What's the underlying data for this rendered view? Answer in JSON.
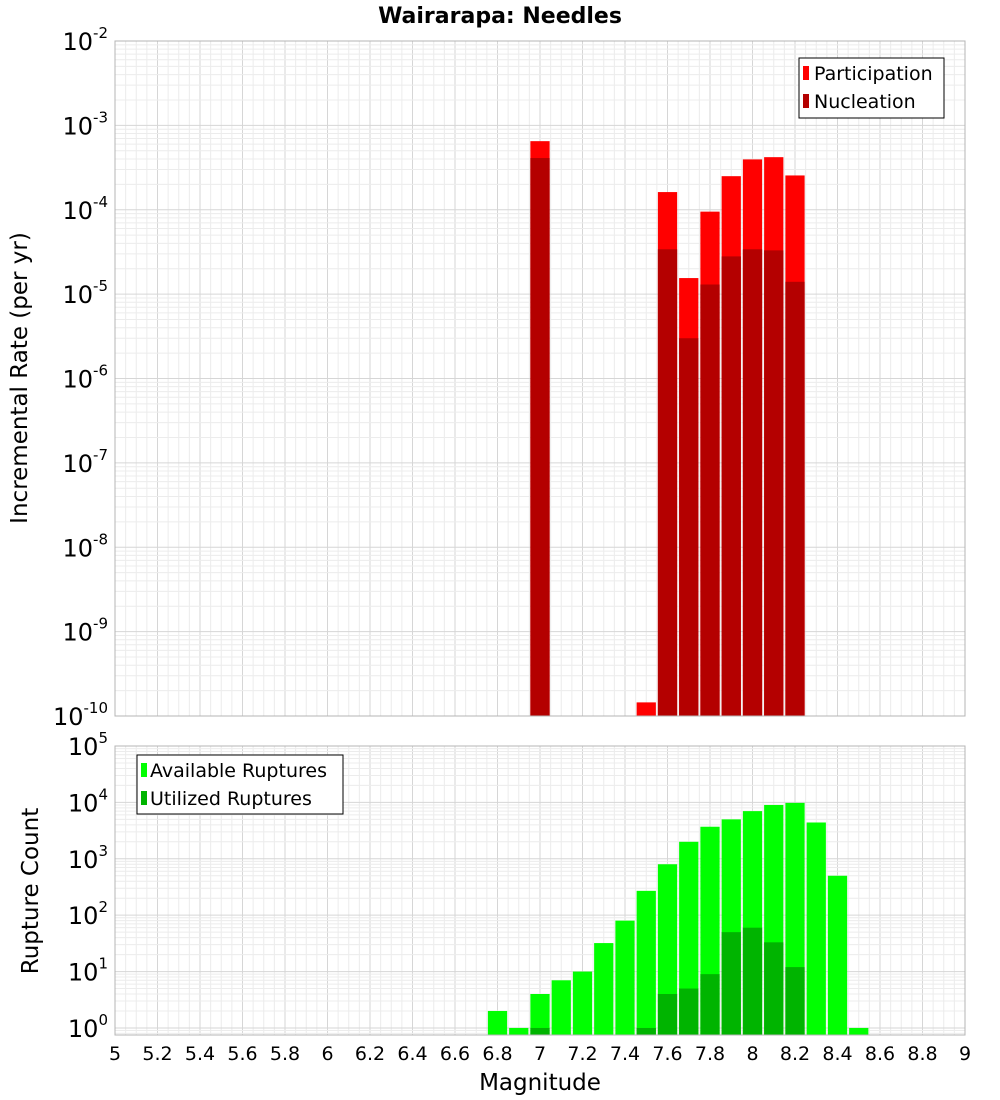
{
  "title": "Wairarapa: Needles",
  "chart_data": [
    {
      "type": "bar",
      "panel": "top",
      "ylabel": "Incremental Rate (per yr)",
      "yscale": "log",
      "ylim": [
        1e-10,
        0.01
      ],
      "y_tick_exponents": [
        "-2",
        "-3",
        "-4",
        "-5",
        "-6",
        "-7",
        "-8",
        "-9",
        "-10"
      ],
      "x": [
        7.0,
        7.5,
        7.6,
        7.7,
        7.8,
        7.9,
        8.0,
        8.1,
        8.2
      ],
      "series": [
        {
          "name": "Participation",
          "color": "#ff0000",
          "values": [
            0.00065,
            1.45e-10,
            0.000162,
            1.55e-05,
            9.5e-05,
            0.00025,
            0.000395,
            0.00042,
            0.000255
          ]
        },
        {
          "name": "Nucleation",
          "color": "#b40000",
          "values": [
            0.00041,
            null,
            3.4e-05,
            3e-06,
            1.3e-05,
            2.8e-05,
            3.4e-05,
            3.3e-05,
            1.4e-05
          ]
        }
      ],
      "legend": {
        "position": "top-right",
        "entries": [
          "Participation",
          "Nucleation"
        ]
      }
    },
    {
      "type": "bar",
      "panel": "bottom",
      "ylabel": "Rupture Count",
      "xlabel": "Magnitude",
      "yscale": "log",
      "ylim": [
        0.75,
        100000
      ],
      "y_tick_exponents": [
        "5",
        "4",
        "3",
        "2",
        "1",
        "0"
      ],
      "xlim": [
        5,
        9
      ],
      "x_tick_labels": [
        "5",
        "5.2",
        "5.4",
        "5.6",
        "5.8",
        "6",
        "6.2",
        "6.4",
        "6.6",
        "6.8",
        "7",
        "7.2",
        "7.4",
        "7.6",
        "7.8",
        "8",
        "8.2",
        "8.4",
        "8.6",
        "8.8",
        "9"
      ],
      "x": [
        6.8,
        6.9,
        7.0,
        7.1,
        7.2,
        7.3,
        7.4,
        7.5,
        7.6,
        7.7,
        7.8,
        7.9,
        8.0,
        8.1,
        8.2,
        8.3,
        8.4,
        8.5
      ],
      "series": [
        {
          "name": "Available Ruptures",
          "color": "#00ff00",
          "values": [
            2,
            1,
            4,
            7,
            10,
            32,
            80,
            270,
            800,
            2000,
            3700,
            5000,
            7000,
            9000,
            9800,
            4400,
            500,
            1
          ]
        },
        {
          "name": "Utilized Ruptures",
          "color": "#00b400",
          "values": [
            null,
            null,
            1,
            null,
            null,
            null,
            null,
            1,
            4,
            5,
            9,
            50,
            60,
            33,
            12,
            null,
            null,
            null
          ]
        }
      ],
      "legend": {
        "position": "top-left",
        "entries": [
          "Available Ruptures",
          "Utilized Ruptures"
        ]
      }
    }
  ]
}
